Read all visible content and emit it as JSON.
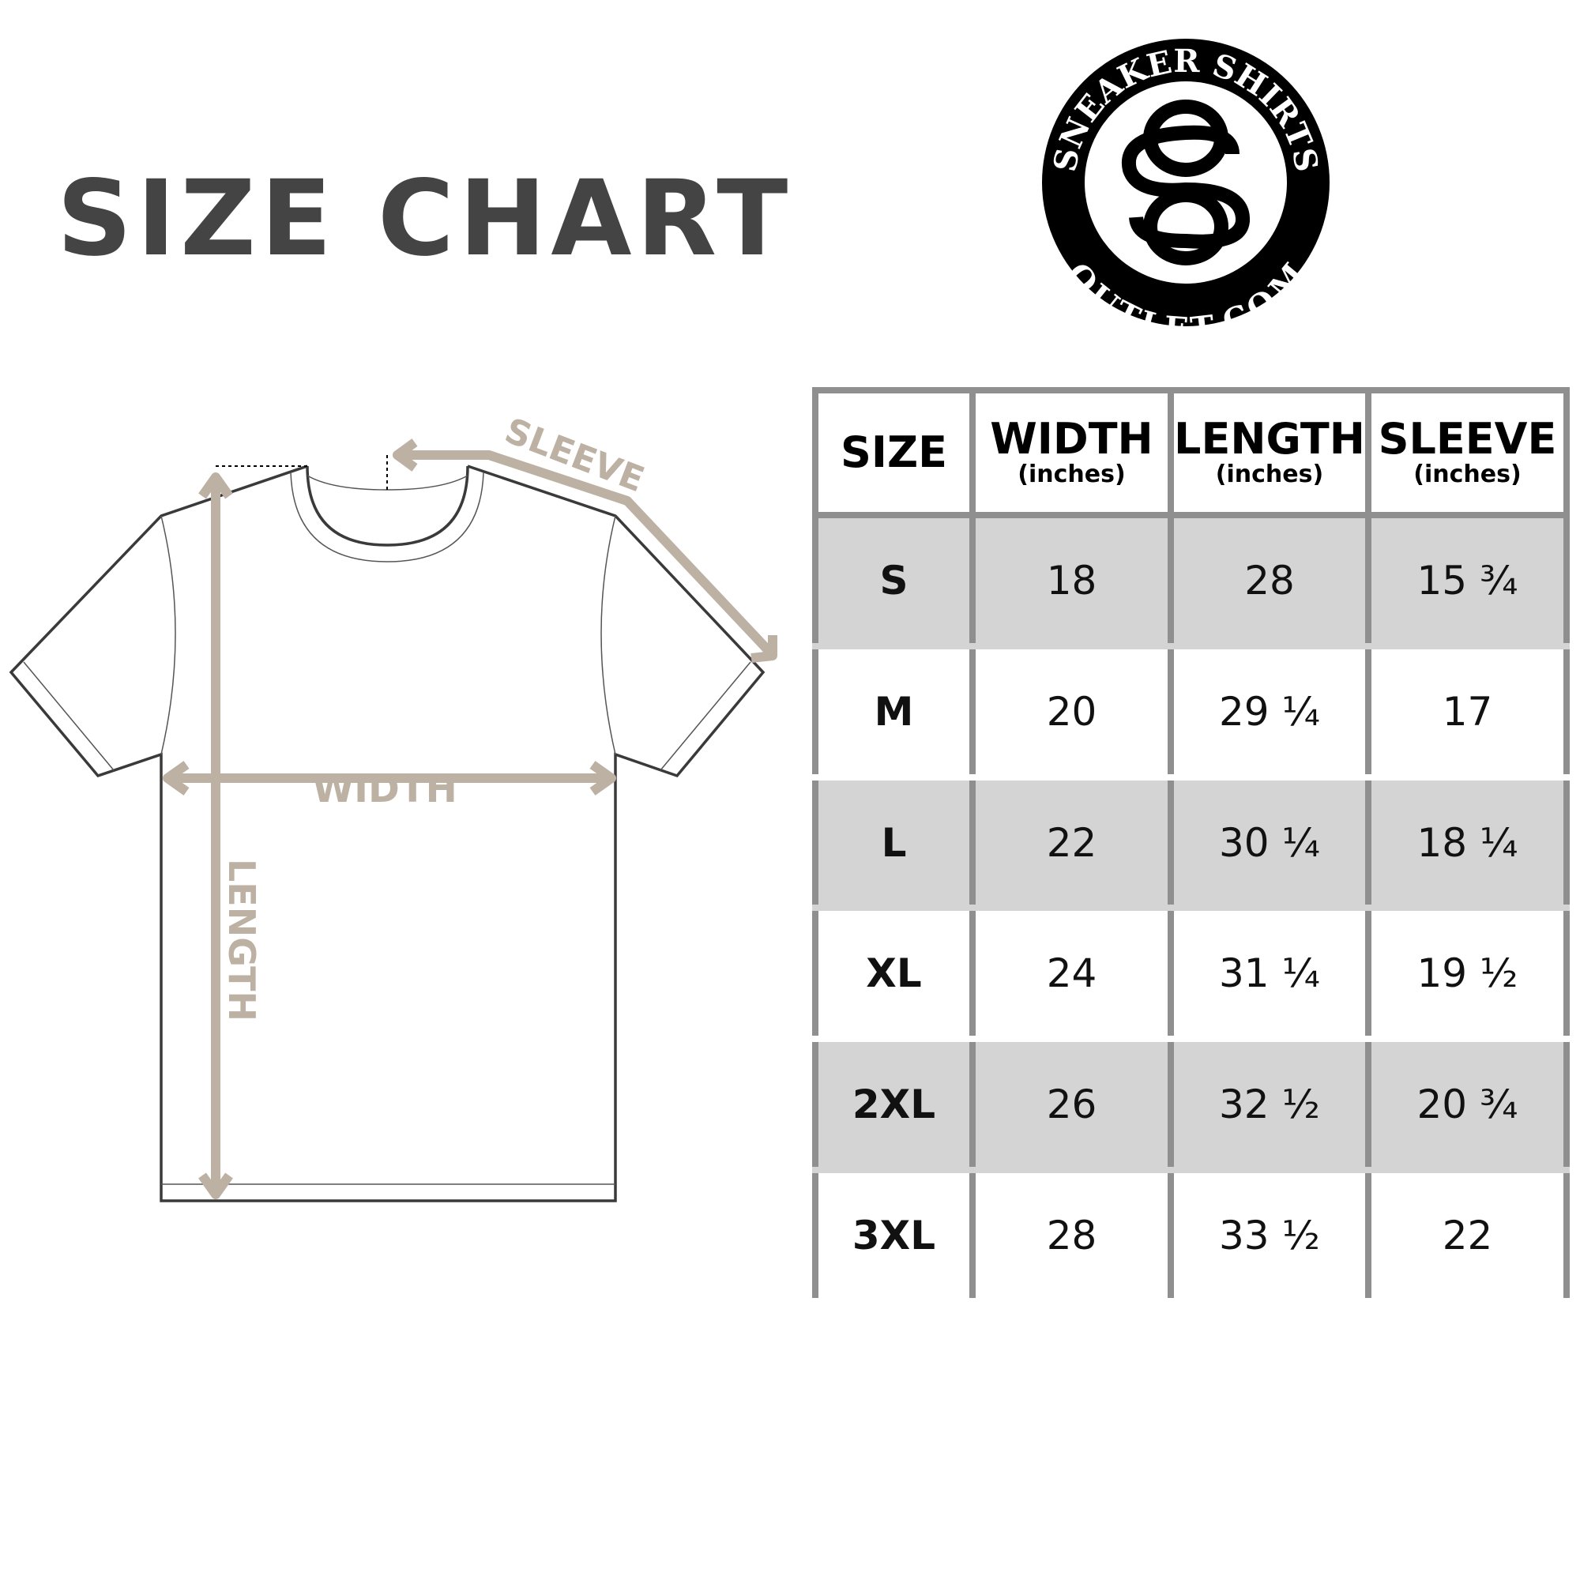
{
  "title": "SIZE CHART",
  "logo": {
    "top_text": "SNEAKER SHIRTS",
    "bottom_text": "OUTLET.COM",
    "monogram": "SO"
  },
  "diagram": {
    "sleeve_label": "SLEEVE",
    "width_label": "WIDTH",
    "length_label": "LENGTH",
    "accent_color": "#bcb1a3"
  },
  "table": {
    "headers": [
      {
        "label": "SIZE",
        "unit": ""
      },
      {
        "label": "WIDTH",
        "unit": "(inches)"
      },
      {
        "label": "LENGTH",
        "unit": "(inches)"
      },
      {
        "label": "SLEEVE",
        "unit": "(inches)"
      }
    ],
    "rows": [
      [
        "S",
        "18",
        "28",
        "15 ¾"
      ],
      [
        "M",
        "20",
        "29 ¼",
        "17"
      ],
      [
        "L",
        "22",
        "30 ¼",
        "18 ¼"
      ],
      [
        "XL",
        "24",
        "31 ¼",
        "19 ½"
      ],
      [
        "2XL",
        "26",
        "32 ½",
        "20 ¾"
      ],
      [
        "3XL",
        "28",
        "33 ½",
        "22"
      ]
    ],
    "stripe_color": "#d4d4d4",
    "border_color": "#8f8f8f"
  }
}
